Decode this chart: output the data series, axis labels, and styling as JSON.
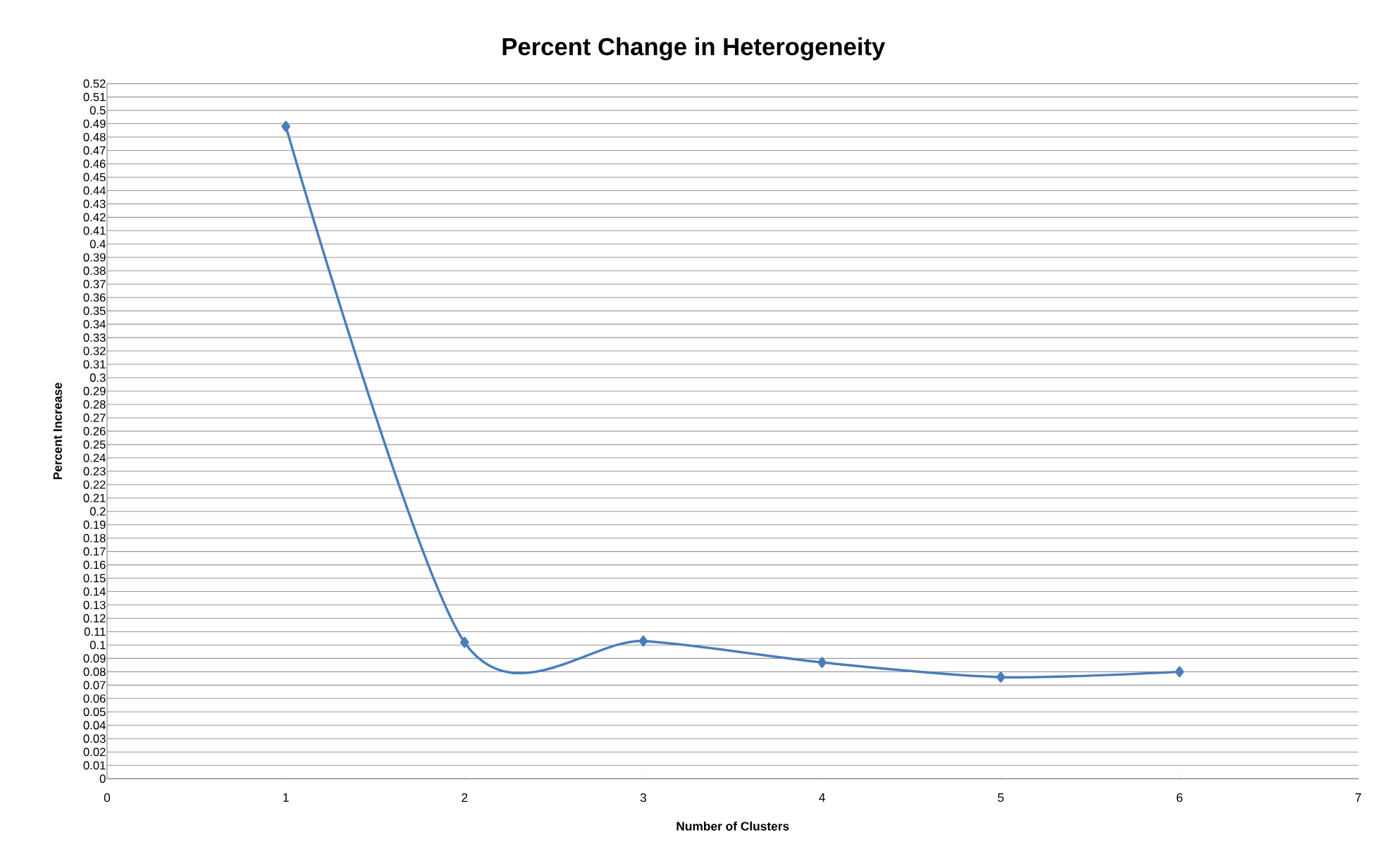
{
  "chart_data": {
    "type": "line",
    "title": "Percent Change in Heterogeneity",
    "xlabel": "Number of Clusters",
    "ylabel": "Percent Increase",
    "x": [
      1,
      2,
      3,
      4,
      5,
      6
    ],
    "series": [
      {
        "color": "#4a7ebb",
        "values": [
          0.488,
          0.102,
          0.103,
          0.087,
          0.076,
          0.08
        ]
      }
    ],
    "xlim": [
      0,
      7
    ],
    "xticks": [
      0,
      1,
      2,
      3,
      4,
      5,
      6,
      7
    ],
    "ylim": [
      0,
      0.52
    ],
    "yticks": [
      0,
      0.01,
      0.02,
      0.03,
      0.04,
      0.05,
      0.06,
      0.07,
      0.08,
      0.09,
      0.1,
      0.11,
      0.12,
      0.13,
      0.14,
      0.15,
      0.16,
      0.17,
      0.18,
      0.19,
      0.2,
      0.21,
      0.22,
      0.23,
      0.24,
      0.25,
      0.26,
      0.27,
      0.28,
      0.29,
      0.3,
      0.31,
      0.32,
      0.33,
      0.34,
      0.35,
      0.36,
      0.37,
      0.38,
      0.39,
      0.4,
      0.41,
      0.42,
      0.43,
      0.44,
      0.45,
      0.46,
      0.47,
      0.48,
      0.49,
      0.5,
      0.51,
      0.52
    ],
    "grid": "y",
    "marker": "diamond",
    "line_style": "solid"
  }
}
